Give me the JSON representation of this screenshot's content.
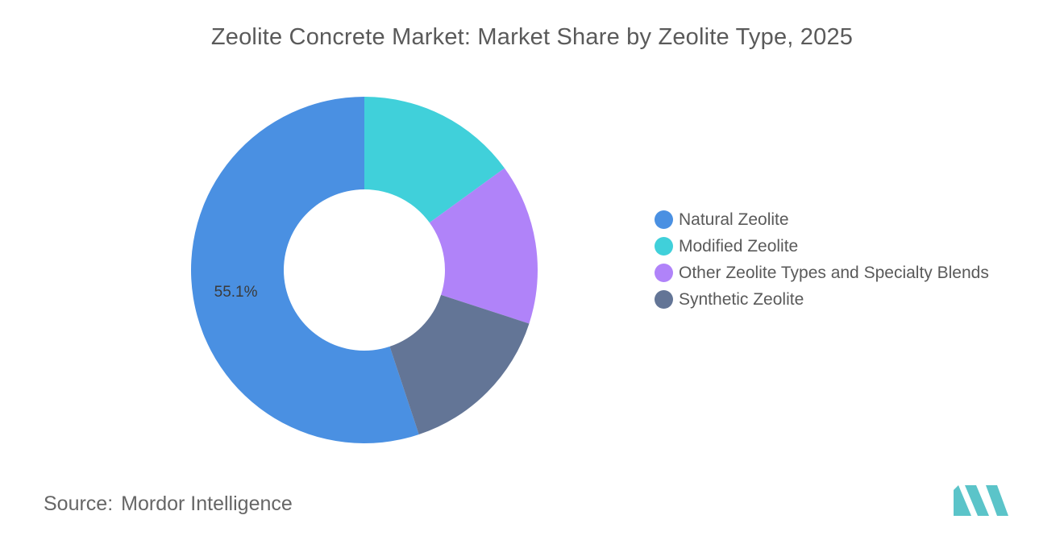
{
  "title": "Zeolite Concrete Market: Market Share by Zeolite Type, 2025",
  "source": {
    "label": "Source:",
    "value": "Mordor Intelligence"
  },
  "logo_icon": "mordor-intelligence-logo",
  "colors": {
    "logo": "#5bc4c9"
  },
  "chart_data": {
    "type": "pie",
    "style": "donut",
    "legend_position": "right",
    "series": [
      {
        "name": "Natural Zeolite",
        "value": 55.1,
        "label": "55.1%",
        "color": "#4a90e2"
      },
      {
        "name": "Modified Zeolite",
        "value": 15.0,
        "label": "",
        "color": "#40d0da"
      },
      {
        "name": "Other Zeolite Types and Specialty Blends",
        "value": 15.0,
        "label": "",
        "color": "#b083f9"
      },
      {
        "name": "Synthetic Zeolite",
        "value": 14.9,
        "label": "",
        "color": "#637596"
      }
    ]
  }
}
